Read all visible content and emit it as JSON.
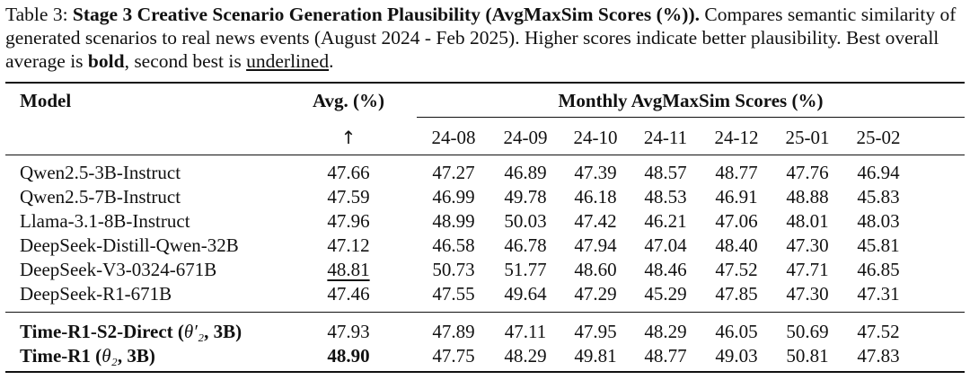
{
  "caption": {
    "label": "Table 3: ",
    "title": "Stage 3 Creative Scenario Generation Plausibility (AvgMaxSim Scores (%)).",
    "text1": " Compares semantic similarity of generated scenarios to real news events (August 2024 - Feb 2025). Higher scores indicate better plausibility. Best overall average is ",
    "bold_word": "bold",
    "text2": ", second best is ",
    "underlined_word": "underlined",
    "text3": "."
  },
  "table": {
    "header": {
      "model": "Model",
      "avg": "Avg. (%)",
      "arrow": "↑",
      "monthly": "Monthly AvgMaxSim Scores (%)",
      "months": [
        "24-08",
        "24-09",
        "24-10",
        "24-11",
        "24-12",
        "25-01",
        "25-02"
      ]
    },
    "rows": [
      {
        "model": "Qwen2.5-3B-Instruct",
        "avg": "47.66",
        "values": [
          "47.27",
          "46.89",
          "47.39",
          "48.57",
          "48.77",
          "47.76",
          "46.94"
        ]
      },
      {
        "model": "Qwen2.5-7B-Instruct",
        "avg": "47.59",
        "values": [
          "46.99",
          "49.78",
          "46.18",
          "48.53",
          "46.91",
          "48.88",
          "45.83"
        ]
      },
      {
        "model": "Llama-3.1-8B-Instruct",
        "avg": "47.96",
        "values": [
          "48.99",
          "50.03",
          "47.42",
          "46.21",
          "47.06",
          "48.01",
          "48.03"
        ]
      },
      {
        "model": "DeepSeek-Distill-Qwen-32B",
        "avg": "47.12",
        "values": [
          "46.58",
          "46.78",
          "47.94",
          "47.04",
          "48.40",
          "47.30",
          "45.81"
        ]
      },
      {
        "model": "DeepSeek-V3-0324-671B",
        "avg": "48.81",
        "values": [
          "50.73",
          "51.77",
          "48.60",
          "48.46",
          "47.52",
          "47.71",
          "46.85"
        ]
      },
      {
        "model": "DeepSeek-R1-671B",
        "avg": "47.46",
        "values": [
          "47.55",
          "49.64",
          "47.29",
          "45.29",
          "47.85",
          "47.30",
          "47.31"
        ]
      }
    ],
    "ours": [
      {
        "model_prefix": "Time-R1-S2-Direct (",
        "model_math": "θ′₂",
        "model_suffix": ", 3B)",
        "avg": "47.93",
        "values": [
          "47.89",
          "47.11",
          "47.95",
          "48.29",
          "46.05",
          "50.69",
          "47.52"
        ]
      },
      {
        "model_prefix": "Time-R1 (",
        "model_math": "θ₂",
        "model_suffix": ", 3B)",
        "avg": "48.90",
        "values": [
          "47.75",
          "48.29",
          "49.81",
          "48.77",
          "49.03",
          "50.81",
          "47.83"
        ]
      }
    ]
  }
}
